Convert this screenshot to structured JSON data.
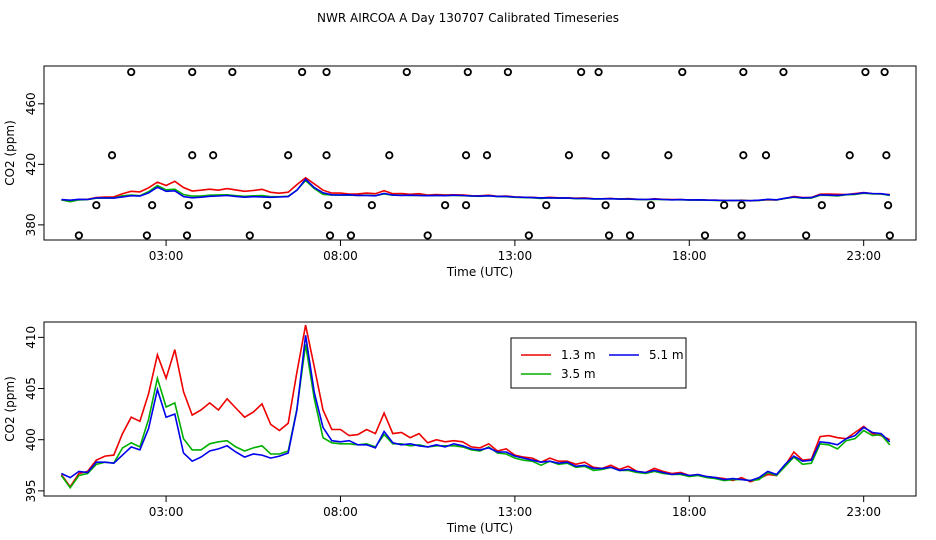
{
  "page": {
    "title": "NWR AIRCOA A  Day 130707  Calibrated Timeseries"
  },
  "chart_data": [
    {
      "type": "scatter",
      "xlabel": "Time (UTC)",
      "ylabel": "CO2 (ppm)",
      "xlim": [
        -0.5,
        24.5
      ],
      "ylim": [
        370,
        485
      ],
      "x_ticks": [
        {
          "value": 3,
          "label": "03:00"
        },
        {
          "value": 8,
          "label": "08:00"
        },
        {
          "value": 13,
          "label": "13:00"
        },
        {
          "value": 18,
          "label": "18:00"
        },
        {
          "value": 23,
          "label": "23:00"
        }
      ],
      "y_ticks": [
        {
          "value": 380,
          "label": "380"
        },
        {
          "value": 420,
          "label": "420"
        },
        {
          "value": 460,
          "label": "460"
        }
      ],
      "grid": false,
      "colors": {
        "1.3 m": "#ee0000",
        "3.5 m": "#00b000",
        "5.1 m": "#0000ee",
        "reference": "#000000"
      },
      "reference_points": [
        {
          "x": 2.0,
          "y": 481
        },
        {
          "x": 3.75,
          "y": 481
        },
        {
          "x": 4.9,
          "y": 481
        },
        {
          "x": 6.9,
          "y": 481
        },
        {
          "x": 7.6,
          "y": 481
        },
        {
          "x": 9.9,
          "y": 481
        },
        {
          "x": 11.65,
          "y": 481
        },
        {
          "x": 12.8,
          "y": 481
        },
        {
          "x": 14.9,
          "y": 481
        },
        {
          "x": 15.4,
          "y": 481
        },
        {
          "x": 17.8,
          "y": 481
        },
        {
          "x": 19.55,
          "y": 481
        },
        {
          "x": 20.7,
          "y": 481
        },
        {
          "x": 23.05,
          "y": 481
        },
        {
          "x": 23.6,
          "y": 481
        },
        {
          "x": 1.45,
          "y": 426
        },
        {
          "x": 3.75,
          "y": 426
        },
        {
          "x": 4.35,
          "y": 426
        },
        {
          "x": 6.5,
          "y": 426
        },
        {
          "x": 7.6,
          "y": 426
        },
        {
          "x": 9.4,
          "y": 426
        },
        {
          "x": 11.6,
          "y": 426
        },
        {
          "x": 12.2,
          "y": 426
        },
        {
          "x": 14.55,
          "y": 426
        },
        {
          "x": 15.6,
          "y": 426
        },
        {
          "x": 17.4,
          "y": 426
        },
        {
          "x": 19.55,
          "y": 426
        },
        {
          "x": 20.2,
          "y": 426
        },
        {
          "x": 22.6,
          "y": 426
        },
        {
          "x": 23.65,
          "y": 426
        },
        {
          "x": 1.0,
          "y": 393
        },
        {
          "x": 2.6,
          "y": 393
        },
        {
          "x": 3.65,
          "y": 393
        },
        {
          "x": 5.9,
          "y": 393
        },
        {
          "x": 7.65,
          "y": 393
        },
        {
          "x": 8.9,
          "y": 393
        },
        {
          "x": 11.0,
          "y": 393
        },
        {
          "x": 11.6,
          "y": 393
        },
        {
          "x": 13.9,
          "y": 393
        },
        {
          "x": 15.6,
          "y": 393
        },
        {
          "x": 16.9,
          "y": 393
        },
        {
          "x": 19.0,
          "y": 393
        },
        {
          "x": 19.5,
          "y": 393
        },
        {
          "x": 21.8,
          "y": 393
        },
        {
          "x": 23.7,
          "y": 393
        },
        {
          "x": 0.5,
          "y": 373
        },
        {
          "x": 2.45,
          "y": 373
        },
        {
          "x": 3.6,
          "y": 373
        },
        {
          "x": 5.4,
          "y": 373
        },
        {
          "x": 7.7,
          "y": 373
        },
        {
          "x": 8.3,
          "y": 373
        },
        {
          "x": 10.5,
          "y": 373
        },
        {
          "x": 13.4,
          "y": 373
        },
        {
          "x": 15.7,
          "y": 373
        },
        {
          "x": 16.3,
          "y": 373
        },
        {
          "x": 18.45,
          "y": 373
        },
        {
          "x": 19.5,
          "y": 373
        },
        {
          "x": 21.35,
          "y": 373
        },
        {
          "x": 23.75,
          "y": 373
        }
      ],
      "series_ref": [
        "1.3 m",
        "3.5 m",
        "5.1 m"
      ]
    },
    {
      "type": "line",
      "xlabel": "Time (UTC)",
      "ylabel": "CO2 (ppm)",
      "xlim": [
        -0.5,
        24.5
      ],
      "ylim": [
        394.5,
        411.5
      ],
      "x_ticks": [
        {
          "value": 3,
          "label": "03:00"
        },
        {
          "value": 8,
          "label": "08:00"
        },
        {
          "value": 13,
          "label": "13:00"
        },
        {
          "value": 18,
          "label": "18:00"
        },
        {
          "value": 23,
          "label": "23:00"
        }
      ],
      "y_ticks": [
        {
          "value": 395,
          "label": "395"
        },
        {
          "value": 400,
          "label": "400"
        },
        {
          "value": 405,
          "label": "405"
        },
        {
          "value": 410,
          "label": "410"
        }
      ],
      "grid": false,
      "legend": {
        "placement": "top-center",
        "items": [
          "1.3 m",
          "5.1 m",
          "3.5 m"
        ]
      },
      "x": [
        0.0,
        0.25,
        0.5,
        0.75,
        1.0,
        1.25,
        1.5,
        1.75,
        2.0,
        2.25,
        2.5,
        2.75,
        3.0,
        3.25,
        3.5,
        3.75,
        4.0,
        4.25,
        4.5,
        4.75,
        5.0,
        5.25,
        5.5,
        5.75,
        6.0,
        6.25,
        6.5,
        6.75,
        7.0,
        7.25,
        7.5,
        7.75,
        8.0,
        8.25,
        8.5,
        8.75,
        9.0,
        9.25,
        9.5,
        9.75,
        10.0,
        10.25,
        10.5,
        10.75,
        11.0,
        11.25,
        11.5,
        11.75,
        12.0,
        12.25,
        12.5,
        12.75,
        13.0,
        13.25,
        13.5,
        13.75,
        14.0,
        14.25,
        14.5,
        14.75,
        15.0,
        15.25,
        15.5,
        15.75,
        16.0,
        16.25,
        16.5,
        16.75,
        17.0,
        17.25,
        17.5,
        17.75,
        18.0,
        18.25,
        18.5,
        18.75,
        19.0,
        19.25,
        19.5,
        19.75,
        20.0,
        20.25,
        20.5,
        20.75,
        21.0,
        21.25,
        21.5,
        21.75,
        22.0,
        22.25,
        22.5,
        22.75,
        23.0,
        23.25,
        23.5,
        23.75
      ],
      "series": [
        {
          "name": "1.3 m",
          "color": "#ee0000",
          "values": [
            396.6,
            395.4,
            396.7,
            396.9,
            398.0,
            398.4,
            398.5,
            400.6,
            402.2,
            401.8,
            404.5,
            408.3,
            406.0,
            408.8,
            404.7,
            402.4,
            402.9,
            403.6,
            402.9,
            404.0,
            403.1,
            402.2,
            402.7,
            403.5,
            401.5,
            400.9,
            401.6,
            406.6,
            411.2,
            407.1,
            402.9,
            401.0,
            401.0,
            400.4,
            400.5,
            401.0,
            400.6,
            402.6,
            400.6,
            400.7,
            400.2,
            400.6,
            399.7,
            400.0,
            399.8,
            399.9,
            399.8,
            399.3,
            399.2,
            399.6,
            398.9,
            399.1,
            398.5,
            398.3,
            398.2,
            397.8,
            398.2,
            397.9,
            397.9,
            397.6,
            397.8,
            397.3,
            397.2,
            397.5,
            397.1,
            397.4,
            396.9,
            396.8,
            397.2,
            396.9,
            396.7,
            396.8,
            396.5,
            396.6,
            396.4,
            396.3,
            396.2,
            396.0,
            396.3,
            395.9,
            396.2,
            396.6,
            396.5,
            397.5,
            398.8,
            398.0,
            398.1,
            400.3,
            400.4,
            400.2,
            400.1,
            400.7,
            401.3,
            400.6,
            400.4,
            400.0
          ]
        },
        {
          "name": "3.5 m",
          "color": "#00b000",
          "values": [
            396.5,
            395.3,
            396.5,
            396.7,
            397.6,
            397.8,
            397.7,
            399.2,
            399.7,
            399.3,
            402.0,
            406.0,
            403.2,
            403.6,
            400.1,
            399.0,
            399.0,
            399.6,
            399.8,
            399.9,
            399.3,
            398.9,
            399.2,
            399.4,
            398.6,
            398.6,
            398.9,
            403.0,
            409.3,
            404.0,
            400.2,
            399.7,
            399.6,
            399.6,
            399.5,
            399.6,
            399.3,
            400.5,
            399.6,
            399.6,
            399.4,
            399.5,
            399.3,
            399.4,
            399.4,
            399.4,
            399.3,
            399.0,
            398.9,
            399.3,
            398.7,
            398.6,
            398.2,
            398.0,
            397.9,
            397.5,
            397.9,
            397.6,
            397.7,
            397.3,
            397.4,
            397.0,
            397.1,
            397.3,
            397.0,
            397.0,
            396.8,
            396.7,
            396.9,
            396.7,
            396.6,
            396.6,
            396.4,
            396.5,
            396.3,
            396.2,
            396.0,
            396.1,
            396.1,
            396.0,
            396.1,
            396.8,
            396.5,
            397.4,
            398.3,
            397.6,
            397.7,
            399.6,
            399.5,
            399.1,
            399.9,
            400.1,
            400.9,
            400.4,
            400.5,
            399.5
          ]
        },
        {
          "name": "5.1 m",
          "color": "#0000ee",
          "values": [
            396.7,
            396.3,
            396.9,
            396.8,
            397.8,
            397.8,
            397.7,
            398.5,
            399.3,
            399.0,
            401.1,
            404.9,
            402.2,
            402.5,
            398.7,
            397.9,
            398.3,
            398.9,
            399.1,
            399.4,
            398.8,
            398.3,
            398.6,
            398.5,
            398.2,
            398.4,
            398.7,
            402.9,
            410.2,
            404.6,
            401.2,
            399.9,
            399.8,
            399.9,
            399.5,
            399.5,
            399.2,
            400.8,
            399.7,
            399.5,
            399.6,
            399.4,
            399.3,
            399.5,
            399.3,
            399.6,
            399.4,
            399.1,
            399.0,
            399.2,
            398.8,
            398.8,
            398.4,
            398.2,
            398.0,
            397.8,
            397.9,
            397.7,
            397.8,
            397.4,
            397.5,
            397.2,
            397.2,
            397.3,
            397.0,
            397.1,
            396.9,
            396.8,
            397.0,
            396.8,
            396.6,
            396.7,
            396.5,
            396.6,
            396.4,
            396.3,
            396.1,
            396.2,
            396.1,
            396.0,
            396.3,
            396.9,
            396.6,
            397.6,
            398.4,
            397.9,
            398.0,
            399.8,
            399.7,
            399.5,
            400.1,
            400.4,
            401.2,
            400.7,
            400.6,
            399.8
          ]
        }
      ]
    }
  ]
}
